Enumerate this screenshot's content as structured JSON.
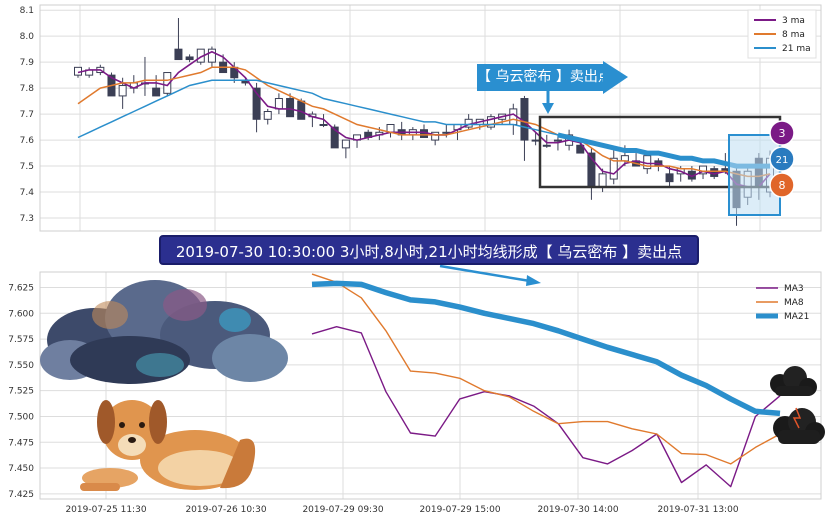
{
  "colors": {
    "ma3": "#7b1a86",
    "ma8": "#e07a2e",
    "ma21": "#2b8fcc",
    "candle": "#3b3f55",
    "grid": "#dddddd",
    "banner": "#2b2f8f",
    "arrow": "#2a8fd0",
    "badge3": "#7b1a86",
    "badge21": "#2a7bbf",
    "badge8": "#e0662a"
  },
  "annotations": {
    "arrow_label": "【 乌云密布 】卖出点",
    "banner": "2019-07-30 10:30:00 3小时,8小时,21小时均线形成【 乌云密布 】卖出点",
    "badge_3": "3",
    "badge_21": "21",
    "badge_8": "8"
  },
  "chart_data": [
    {
      "type": "candlestick",
      "ylim": [
        7.25,
        8.12
      ],
      "yticks": [
        7.3,
        7.4,
        7.5,
        7.6,
        7.7,
        7.8,
        7.9,
        8.0,
        8.1
      ],
      "ytick_labels": [
        "7.3",
        "7.4",
        "7.5",
        "7.6",
        "7.7",
        "7.8",
        "7.9",
        "8.0",
        "8.1"
      ],
      "legend": {
        "position": "top-right",
        "entries": [
          "3 ma",
          "8 ma",
          "21 ma"
        ]
      },
      "grid": true,
      "candles": [
        {
          "o": 7.85,
          "h": 7.88,
          "l": 7.84,
          "c": 7.88
        },
        {
          "o": 7.85,
          "h": 7.88,
          "l": 7.84,
          "c": 7.87
        },
        {
          "o": 7.86,
          "h": 7.89,
          "l": 7.85,
          "c": 7.88
        },
        {
          "o": 7.85,
          "h": 7.86,
          "l": 7.77,
          "c": 7.77
        },
        {
          "o": 7.77,
          "h": 7.84,
          "l": 7.72,
          "c": 7.81
        },
        {
          "o": 7.8,
          "h": 7.85,
          "l": 7.78,
          "c": 7.82
        },
        {
          "o": 7.82,
          "h": 7.92,
          "l": 7.77,
          "c": 7.82
        },
        {
          "o": 7.8,
          "h": 7.85,
          "l": 7.77,
          "c": 7.77
        },
        {
          "o": 7.78,
          "h": 7.86,
          "l": 7.77,
          "c": 7.86
        },
        {
          "o": 7.95,
          "h": 8.07,
          "l": 7.91,
          "c": 7.91
        },
        {
          "o": 7.92,
          "h": 7.93,
          "l": 7.9,
          "c": 7.91
        },
        {
          "o": 7.9,
          "h": 7.95,
          "l": 7.89,
          "c": 7.95
        },
        {
          "o": 7.9,
          "h": 7.96,
          "l": 7.88,
          "c": 7.95
        },
        {
          "o": 7.9,
          "h": 7.93,
          "l": 7.86,
          "c": 7.86
        },
        {
          "o": 7.88,
          "h": 7.9,
          "l": 7.82,
          "c": 7.84
        },
        {
          "o": 7.83,
          "h": 7.84,
          "l": 7.81,
          "c": 7.82
        },
        {
          "o": 7.8,
          "h": 7.82,
          "l": 7.63,
          "c": 7.68
        },
        {
          "o": 7.68,
          "h": 7.72,
          "l": 7.66,
          "c": 7.71
        },
        {
          "o": 7.72,
          "h": 7.78,
          "l": 7.7,
          "c": 7.76
        },
        {
          "o": 7.76,
          "h": 7.78,
          "l": 7.69,
          "c": 7.69
        },
        {
          "o": 7.75,
          "h": 7.76,
          "l": 7.68,
          "c": 7.68
        },
        {
          "o": 7.69,
          "h": 7.71,
          "l": 7.65,
          "c": 7.7
        },
        {
          "o": 7.66,
          "h": 7.7,
          "l": 7.65,
          "c": 7.66
        },
        {
          "o": 7.65,
          "h": 7.66,
          "l": 7.57,
          "c": 7.57
        },
        {
          "o": 7.57,
          "h": 7.6,
          "l": 7.53,
          "c": 7.6
        },
        {
          "o": 7.6,
          "h": 7.62,
          "l": 7.57,
          "c": 7.62
        },
        {
          "o": 7.63,
          "h": 7.64,
          "l": 7.6,
          "c": 7.61
        },
        {
          "o": 7.62,
          "h": 7.65,
          "l": 7.6,
          "c": 7.63
        },
        {
          "o": 7.63,
          "h": 7.66,
          "l": 7.61,
          "c": 7.66
        },
        {
          "o": 7.64,
          "h": 7.67,
          "l": 7.6,
          "c": 7.62
        },
        {
          "o": 7.62,
          "h": 7.65,
          "l": 7.6,
          "c": 7.64
        },
        {
          "o": 7.64,
          "h": 7.66,
          "l": 7.61,
          "c": 7.61
        },
        {
          "o": 7.6,
          "h": 7.63,
          "l": 7.58,
          "c": 7.63
        },
        {
          "o": 7.63,
          "h": 7.66,
          "l": 7.61,
          "c": 7.63
        },
        {
          "o": 7.64,
          "h": 7.66,
          "l": 7.6,
          "c": 7.66
        },
        {
          "o": 7.65,
          "h": 7.7,
          "l": 7.64,
          "c": 7.68
        },
        {
          "o": 7.66,
          "h": 7.68,
          "l": 7.64,
          "c": 7.68
        },
        {
          "o": 7.65,
          "h": 7.7,
          "l": 7.64,
          "c": 7.69
        },
        {
          "o": 7.68,
          "h": 7.7,
          "l": 7.66,
          "c": 7.7
        },
        {
          "o": 7.66,
          "h": 7.74,
          "l": 7.62,
          "c": 7.72
        },
        {
          "o": 7.76,
          "h": 7.77,
          "l": 7.52,
          "c": 7.6
        },
        {
          "o": 7.6,
          "h": 7.63,
          "l": 7.58,
          "c": 7.6
        },
        {
          "o": 7.58,
          "h": 7.62,
          "l": 7.57,
          "c": 7.58
        },
        {
          "o": 7.6,
          "h": 7.62,
          "l": 7.56,
          "c": 7.6
        },
        {
          "o": 7.58,
          "h": 7.64,
          "l": 7.56,
          "c": 7.62
        },
        {
          "o": 7.58,
          "h": 7.6,
          "l": 7.55,
          "c": 7.55
        },
        {
          "o": 7.55,
          "h": 7.57,
          "l": 7.37,
          "c": 7.42
        },
        {
          "o": 7.42,
          "h": 7.49,
          "l": 7.4,
          "c": 7.47
        },
        {
          "o": 7.45,
          "h": 7.56,
          "l": 7.43,
          "c": 7.53
        },
        {
          "o": 7.52,
          "h": 7.58,
          "l": 7.5,
          "c": 7.54
        },
        {
          "o": 7.52,
          "h": 7.55,
          "l": 7.5,
          "c": 7.5
        },
        {
          "o": 7.49,
          "h": 7.55,
          "l": 7.47,
          "c": 7.54
        },
        {
          "o": 7.52,
          "h": 7.53,
          "l": 7.48,
          "c": 7.5
        },
        {
          "o": 7.47,
          "h": 7.5,
          "l": 7.42,
          "c": 7.44
        },
        {
          "o": 7.47,
          "h": 7.5,
          "l": 7.44,
          "c": 7.49
        },
        {
          "o": 7.48,
          "h": 7.5,
          "l": 7.44,
          "c": 7.45
        },
        {
          "o": 7.47,
          "h": 7.5,
          "l": 7.45,
          "c": 7.5
        },
        {
          "o": 7.49,
          "h": 7.5,
          "l": 7.45,
          "c": 7.46
        },
        {
          "o": 7.49,
          "h": 7.55,
          "l": 7.47,
          "c": 7.48
        },
        {
          "o": 7.48,
          "h": 7.5,
          "l": 7.27,
          "c": 7.34
        },
        {
          "o": 7.38,
          "h": 7.5,
          "l": 7.35,
          "c": 7.48
        },
        {
          "o": 7.53,
          "h": 7.55,
          "l": 7.37,
          "c": 7.42
        },
        {
          "o": 7.4,
          "h": 7.56,
          "l": 7.38,
          "c": 7.53
        }
      ],
      "series": [
        {
          "name": "3 ma",
          "values": [
            7.86,
            7.87,
            7.87,
            7.84,
            7.82,
            7.8,
            7.82,
            7.82,
            7.81,
            7.86,
            7.89,
            7.92,
            7.94,
            7.92,
            7.88,
            7.84,
            7.78,
            7.73,
            7.72,
            7.72,
            7.71,
            7.69,
            7.68,
            7.64,
            7.61,
            7.6,
            7.61,
            7.62,
            7.63,
            7.63,
            7.63,
            7.63,
            7.62,
            7.62,
            7.64,
            7.66,
            7.67,
            7.68,
            7.69,
            7.7,
            7.67,
            7.63,
            7.59,
            7.59,
            7.6,
            7.59,
            7.53,
            7.48,
            7.47,
            7.51,
            7.52,
            7.51,
            7.51,
            7.49,
            7.48,
            7.46,
            7.48,
            7.47,
            7.48,
            7.43,
            7.42,
            7.42,
            7.47
          ]
        },
        {
          "name": "8 ma",
          "values": [
            7.74,
            7.77,
            7.8,
            7.81,
            7.82,
            7.82,
            7.83,
            7.83,
            7.83,
            7.84,
            7.85,
            7.86,
            7.88,
            7.88,
            7.88,
            7.87,
            7.84,
            7.81,
            7.79,
            7.77,
            7.75,
            7.73,
            7.72,
            7.7,
            7.68,
            7.66,
            7.65,
            7.64,
            7.63,
            7.62,
            7.62,
            7.62,
            7.62,
            7.62,
            7.63,
            7.64,
            7.65,
            7.66,
            7.67,
            7.68,
            7.67,
            7.66,
            7.64,
            7.62,
            7.61,
            7.6,
            7.57,
            7.54,
            7.52,
            7.52,
            7.51,
            7.5,
            7.5,
            7.5,
            7.49,
            7.49,
            7.48,
            7.48,
            7.48,
            7.47,
            7.46,
            7.46,
            7.47
          ]
        },
        {
          "name": "21 ma",
          "values": [
            7.61,
            7.63,
            7.65,
            7.67,
            7.69,
            7.71,
            7.73,
            7.75,
            7.77,
            7.79,
            7.81,
            7.82,
            7.83,
            7.83,
            7.83,
            7.83,
            7.83,
            7.82,
            7.81,
            7.8,
            7.79,
            7.78,
            7.76,
            7.75,
            7.74,
            7.73,
            7.72,
            7.71,
            7.7,
            7.69,
            7.68,
            7.67,
            7.67,
            7.66,
            7.66,
            7.66,
            7.66,
            7.66,
            7.66,
            7.66,
            7.65,
            7.64,
            7.63,
            7.62,
            7.61,
            7.6,
            7.59,
            7.58,
            7.57,
            7.56,
            7.56,
            7.55,
            7.55,
            7.54,
            7.53,
            7.53,
            7.52,
            7.52,
            7.51,
            7.5,
            7.5,
            7.5,
            7.5
          ]
        }
      ]
    },
    {
      "type": "line",
      "ylim": [
        7.42,
        7.64
      ],
      "yticks": [
        7.425,
        7.45,
        7.475,
        7.5,
        7.525,
        7.55,
        7.575,
        7.6,
        7.625
      ],
      "ytick_labels": [
        "7.425",
        "7.450",
        "7.475",
        "7.500",
        "7.525",
        "7.550",
        "7.575",
        "7.600",
        "7.625"
      ],
      "x_tick_labels": [
        "2019-07-25 11:30",
        "2019-07-26 10:30",
        "2019-07-29 09:30",
        "2019-07-29 15:00",
        "2019-07-30 14:00",
        "2019-07-31 13:00"
      ],
      "legend": {
        "position": "top-right",
        "entries": [
          "MA3",
          "MA8",
          "MA21"
        ]
      },
      "grid": true,
      "series": [
        {
          "name": "MA3",
          "values": [
            7.58,
            7.587,
            7.581,
            7.524,
            7.484,
            7.481,
            7.517,
            7.524,
            7.52,
            7.51,
            7.493,
            7.46,
            7.454,
            7.467,
            7.483,
            7.436,
            7.453,
            7.432,
            7.5,
            7.52
          ]
        },
        {
          "name": "MA8",
          "values": [
            7.638,
            7.63,
            7.615,
            7.583,
            7.544,
            7.542,
            7.537,
            7.525,
            7.519,
            7.505,
            7.493,
            7.495,
            7.495,
            7.488,
            7.483,
            7.464,
            7.463,
            7.454,
            7.47,
            7.483
          ]
        },
        {
          "name": "MA21",
          "values": [
            7.628,
            7.629,
            7.628,
            7.62,
            7.613,
            7.611,
            7.606,
            7.6,
            7.595,
            7.59,
            7.583,
            7.575,
            7.567,
            7.56,
            7.553,
            7.54,
            7.53,
            7.517,
            7.505,
            7.503
          ]
        }
      ]
    }
  ]
}
